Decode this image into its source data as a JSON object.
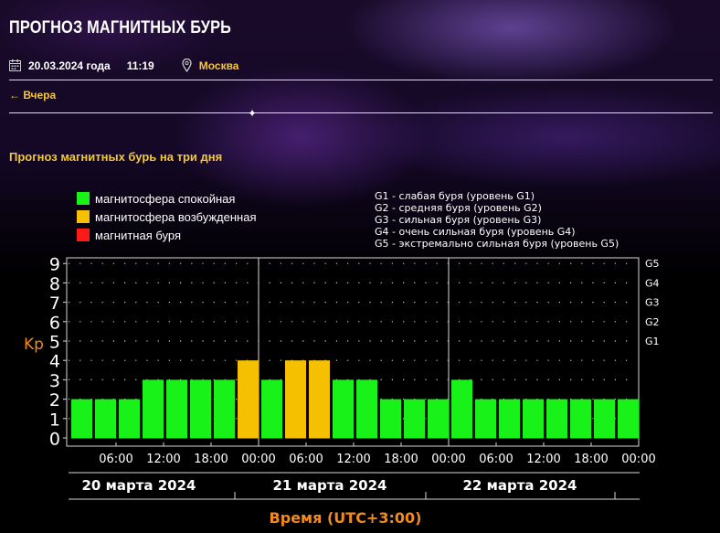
{
  "page": {
    "title": "ПРОГНОЗ МАГНИТНЫХ БУРЬ",
    "date": "20.03.2024 года",
    "time": "11:19",
    "city": "Москва",
    "back_link": "← Вчера",
    "subtitle": "Прогноз магнитных бурь на три дня"
  },
  "legend": [
    {
      "label": "магнитосфера спокойная",
      "color": "#19f219"
    },
    {
      "label": "магнитосфера возбужденная",
      "color": "#f5c000"
    },
    {
      "label": "магнитная буря",
      "color": "#ff1a1a"
    }
  ],
  "g_legend": [
    "G1 - слабая буря (уровень G1)",
    "G2 - средняя буря (уровень G2)",
    "G3 - сильная буря (уровень G3)",
    "G4 - очень сильная буря (уровень G4)",
    "G5 - экстремально сильная буря (уровень G5)"
  ],
  "colors": {
    "accent": "#f3c73a",
    "axis_label": "#f08a1c"
  },
  "chart_data": {
    "type": "bar",
    "ylabel": "Kp",
    "xlabel": "Время (UTC+3:00)",
    "ylim": [
      0,
      9
    ],
    "y_ticks": [
      "0",
      "1",
      "2",
      "3",
      "4",
      "5",
      "6",
      "7",
      "8",
      "9"
    ],
    "right_ticks": [
      {
        "value": 5,
        "label": "G1"
      },
      {
        "value": 6,
        "label": "G2"
      },
      {
        "value": 7,
        "label": "G3"
      },
      {
        "value": 8,
        "label": "G4"
      },
      {
        "value": 9,
        "label": "G5"
      }
    ],
    "x_ticks": [
      "06:00",
      "12:00",
      "18:00",
      "00:00",
      "06:00",
      "12:00",
      "18:00",
      "00:00",
      "06:00",
      "12:00",
      "18:00",
      "00:00"
    ],
    "days": [
      "20 марта 2024",
      "21 марта 2024",
      "22 марта 2024"
    ],
    "values": [
      2,
      2,
      2,
      3,
      3,
      3,
      3,
      4,
      3,
      4,
      4,
      3,
      3,
      2,
      2,
      2,
      3,
      2,
      2,
      2,
      2,
      2,
      2,
      2
    ],
    "levels": [
      "quiet",
      "quiet",
      "quiet",
      "quiet",
      "quiet",
      "quiet",
      "quiet",
      "active",
      "quiet",
      "active",
      "active",
      "quiet",
      "quiet",
      "quiet",
      "quiet",
      "quiet",
      "quiet",
      "quiet",
      "quiet",
      "quiet",
      "quiet",
      "quiet",
      "quiet",
      "quiet"
    ],
    "level_colors": {
      "quiet": "#19f219",
      "active": "#f5c000",
      "storm": "#ff1a1a"
    },
    "grid": "dotted",
    "legend_position": "top"
  }
}
